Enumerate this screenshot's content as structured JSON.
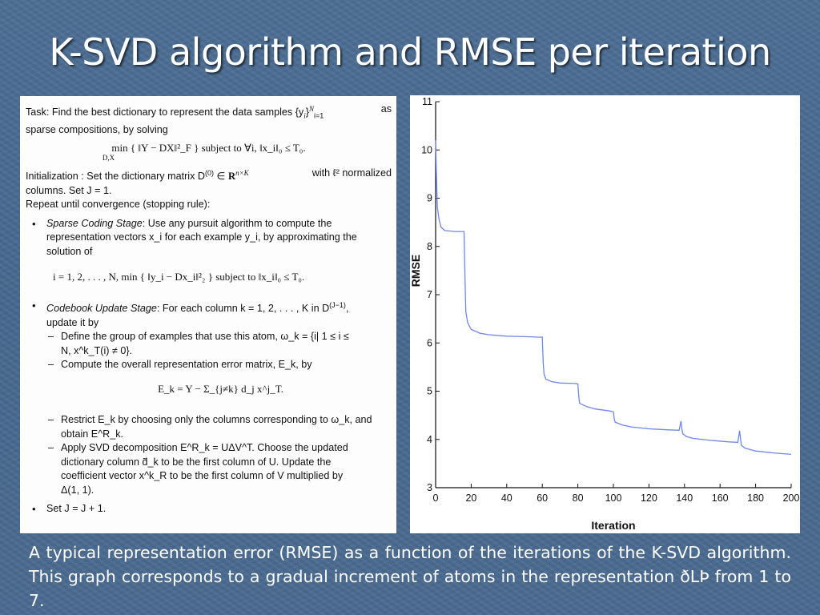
{
  "slide": {
    "title": "K-SVD algorithm and RMSE per iteration",
    "caption": "A typical representation error (RMSE) as a function of the iterations of the K-SVD algorithm. This graph corresponds to a gradual increment of atoms in the representation ðLÞ from 1 to 7."
  },
  "algorithm": {
    "task_l1_a": "Task: Find the best dictionary to represent the data samples {y",
    "task_l1_b": "as",
    "task_l2": "sparse compositions, by solving",
    "task_math": "min  { ‖Y − DX‖²_F }    subject to   ∀i,  ‖x_i‖₀ ≤ T₀.",
    "task_math_sub": "D,X",
    "init_l1_a": "Initialization : Set the dictionary matrix D",
    "init_l1_b": "with ℓ² normalized",
    "init_l2": "columns. Set J = 1.",
    "repeat": "Repeat until convergence (stopping rule):",
    "sparse_l1_a": "Sparse Coding Stage",
    "sparse_l1_b": ": Use any pursuit algorithm to compute the",
    "sparse_l2": "representation vectors x_i for each example y_i, by approximating the",
    "sparse_l3": "solution of",
    "sparse_math": "i = 1, 2, . . . ,  N,     min  { ‖y_i − Dx_i‖²₂ }     subject to   ‖x_i‖₀ ≤ T₀.",
    "codebook_l1_a": "Codebook Update Stage",
    "codebook_l1_b": ": For each column k = 1, 2, . . . , K in D",
    "codebook_l2": "update it by",
    "define_l1": "Define the group of examples that use this atom, ω_k = {i| 1 ≤ i ≤",
    "define_l2": "N,  x^k_T(i) ≠ 0}.",
    "compute_l1": "Compute the overall representation error matrix, E_k, by",
    "compute_math": "E_k = Y − Σ_{j≠k} d_j x^j_T.",
    "restrict_l1": "Restrict E_k by choosing only the columns corresponding to ω_k, and",
    "restrict_l2": "obtain E^R_k.",
    "svd_l1": "Apply SVD decomposition E^R_k = UΔV^T. Choose the updated",
    "svd_l2": "dictionary column d̃_k to be the first column of U. Update the",
    "svd_l3": "coefficient vector x^k_R to be the first column of V multiplied by",
    "svd_l4": "Δ(1, 1).",
    "set_j": "Set J = J + 1."
  },
  "chart_data": {
    "type": "line",
    "xlabel": "Iteration",
    "ylabel": "RMSE",
    "xlim": [
      0,
      200
    ],
    "ylim": [
      3,
      11
    ],
    "xticks": [
      0,
      20,
      40,
      60,
      80,
      100,
      120,
      140,
      160,
      180,
      200
    ],
    "yticks": [
      3,
      4,
      5,
      6,
      7,
      8,
      9,
      10,
      11
    ],
    "grid": false,
    "line_color": "#6f86ee",
    "series": [
      {
        "x": [
          0,
          0.5,
          1,
          2,
          3,
          5,
          8,
          11,
          14,
          16,
          16.5,
          17,
          18,
          20,
          25,
          30,
          40,
          50,
          58,
          60,
          60.5,
          61,
          62,
          65,
          70,
          78,
          80,
          80.5,
          81,
          85,
          90,
          98,
          100,
          100.5,
          101,
          105,
          110,
          120,
          130,
          137,
          138,
          138.5,
          139,
          141,
          145,
          155,
          165,
          170,
          171,
          171.5,
          172,
          174,
          180,
          190,
          200
        ],
        "y": [
          10.2,
          9.4,
          8.8,
          8.55,
          8.4,
          8.33,
          8.32,
          8.31,
          8.31,
          8.31,
          7.4,
          6.65,
          6.42,
          6.28,
          6.2,
          6.17,
          6.14,
          6.13,
          6.12,
          6.12,
          5.6,
          5.35,
          5.25,
          5.2,
          5.17,
          5.16,
          5.15,
          4.9,
          4.75,
          4.68,
          4.63,
          4.59,
          4.57,
          4.42,
          4.36,
          4.3,
          4.26,
          4.22,
          4.2,
          4.19,
          4.38,
          4.22,
          4.12,
          4.06,
          4.02,
          3.98,
          3.95,
          3.94,
          4.18,
          4.02,
          3.88,
          3.82,
          3.76,
          3.72,
          3.69
        ]
      }
    ]
  }
}
